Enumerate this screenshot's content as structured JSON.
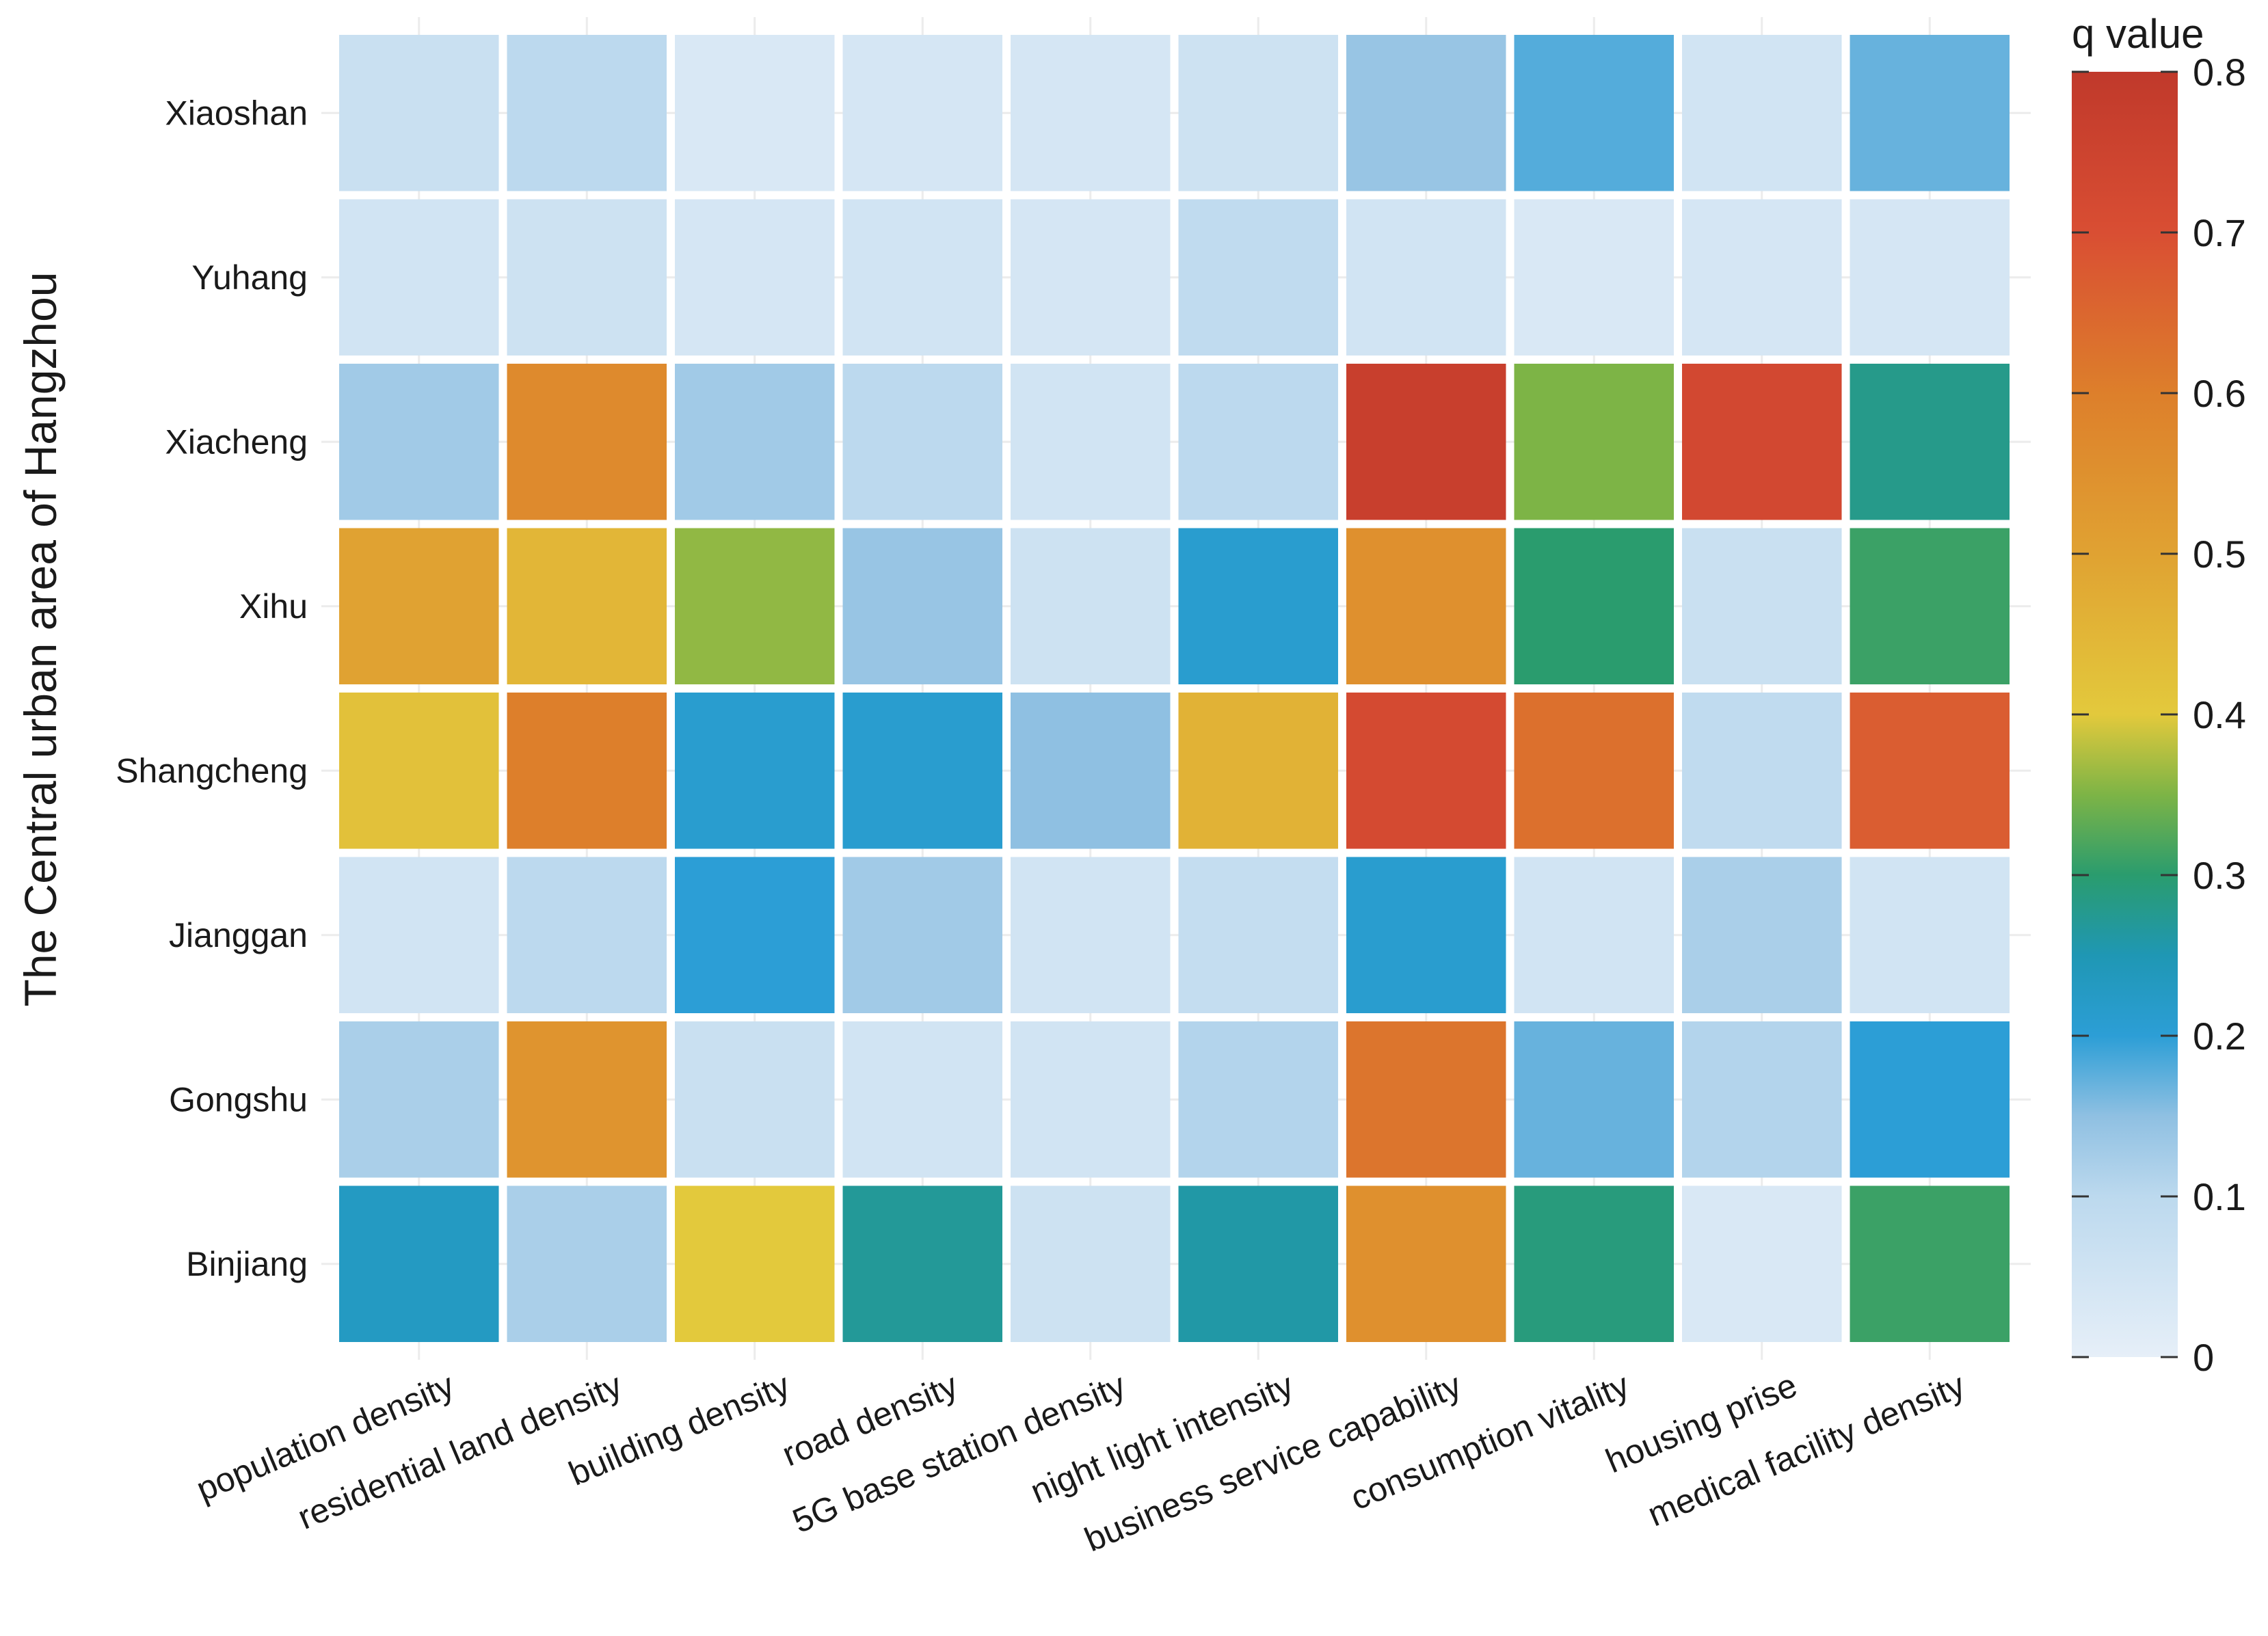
{
  "chart_data": {
    "type": "heatmap",
    "title": "",
    "xlabel": "",
    "ylabel": "The Central urban area of Hangzhou",
    "columns": [
      "population density",
      "residential land density",
      "building density",
      "road density",
      "5G base station density",
      "night light intensity",
      "business service capability",
      "consumption vitality",
      "housing prise",
      "medical facility density"
    ],
    "rows": [
      "Xiaoshan",
      "Yuhang",
      "Xiacheng",
      "Xihu",
      "Shangcheng",
      "Jianggan",
      "Gongshu",
      "Binjiang"
    ],
    "values": [
      [
        0.07,
        0.1,
        0.03,
        0.04,
        0.04,
        0.06,
        0.14,
        0.18,
        0.05,
        0.17
      ],
      [
        0.05,
        0.06,
        0.04,
        0.05,
        0.04,
        0.09,
        0.05,
        0.03,
        0.04,
        0.04
      ],
      [
        0.13,
        0.57,
        0.13,
        0.1,
        0.05,
        0.1,
        0.77,
        0.35,
        0.73,
        0.28
      ],
      [
        0.5,
        0.45,
        0.36,
        0.14,
        0.06,
        0.21,
        0.55,
        0.3,
        0.07,
        0.31
      ],
      [
        0.42,
        0.6,
        0.21,
        0.21,
        0.15,
        0.46,
        0.72,
        0.63,
        0.09,
        0.67
      ],
      [
        0.05,
        0.1,
        0.2,
        0.13,
        0.05,
        0.08,
        0.21,
        0.05,
        0.12,
        0.05
      ],
      [
        0.12,
        0.54,
        0.07,
        0.05,
        0.05,
        0.11,
        0.62,
        0.17,
        0.11,
        0.2
      ],
      [
        0.23,
        0.12,
        0.4,
        0.27,
        0.06,
        0.26,
        0.55,
        0.29,
        0.03,
        0.31
      ]
    ],
    "legend": {
      "title": "q value",
      "range": [
        0,
        0.8
      ],
      "ticks": [
        "0",
        "0.1",
        "0.2",
        "0.3",
        "0.4",
        "0.5",
        "0.6",
        "0.7",
        "0.8"
      ],
      "placement": "right"
    },
    "colorscale": [
      {
        "value": 0.0,
        "color": "#e6eff8"
      },
      {
        "value": 0.1,
        "color": "#bcd9ee"
      },
      {
        "value": 0.15,
        "color": "#8fc0e2"
      },
      {
        "value": 0.2,
        "color": "#2c9ed6"
      },
      {
        "value": 0.25,
        "color": "#1f97b4"
      },
      {
        "value": 0.3,
        "color": "#2a9c6e"
      },
      {
        "value": 0.35,
        "color": "#7db446"
      },
      {
        "value": 0.4,
        "color": "#e3c93c"
      },
      {
        "value": 0.5,
        "color": "#e0a232"
      },
      {
        "value": 0.6,
        "color": "#dd7f2b"
      },
      {
        "value": 0.7,
        "color": "#d94e33"
      },
      {
        "value": 0.8,
        "color": "#c0392b"
      }
    ],
    "grid": true
  }
}
